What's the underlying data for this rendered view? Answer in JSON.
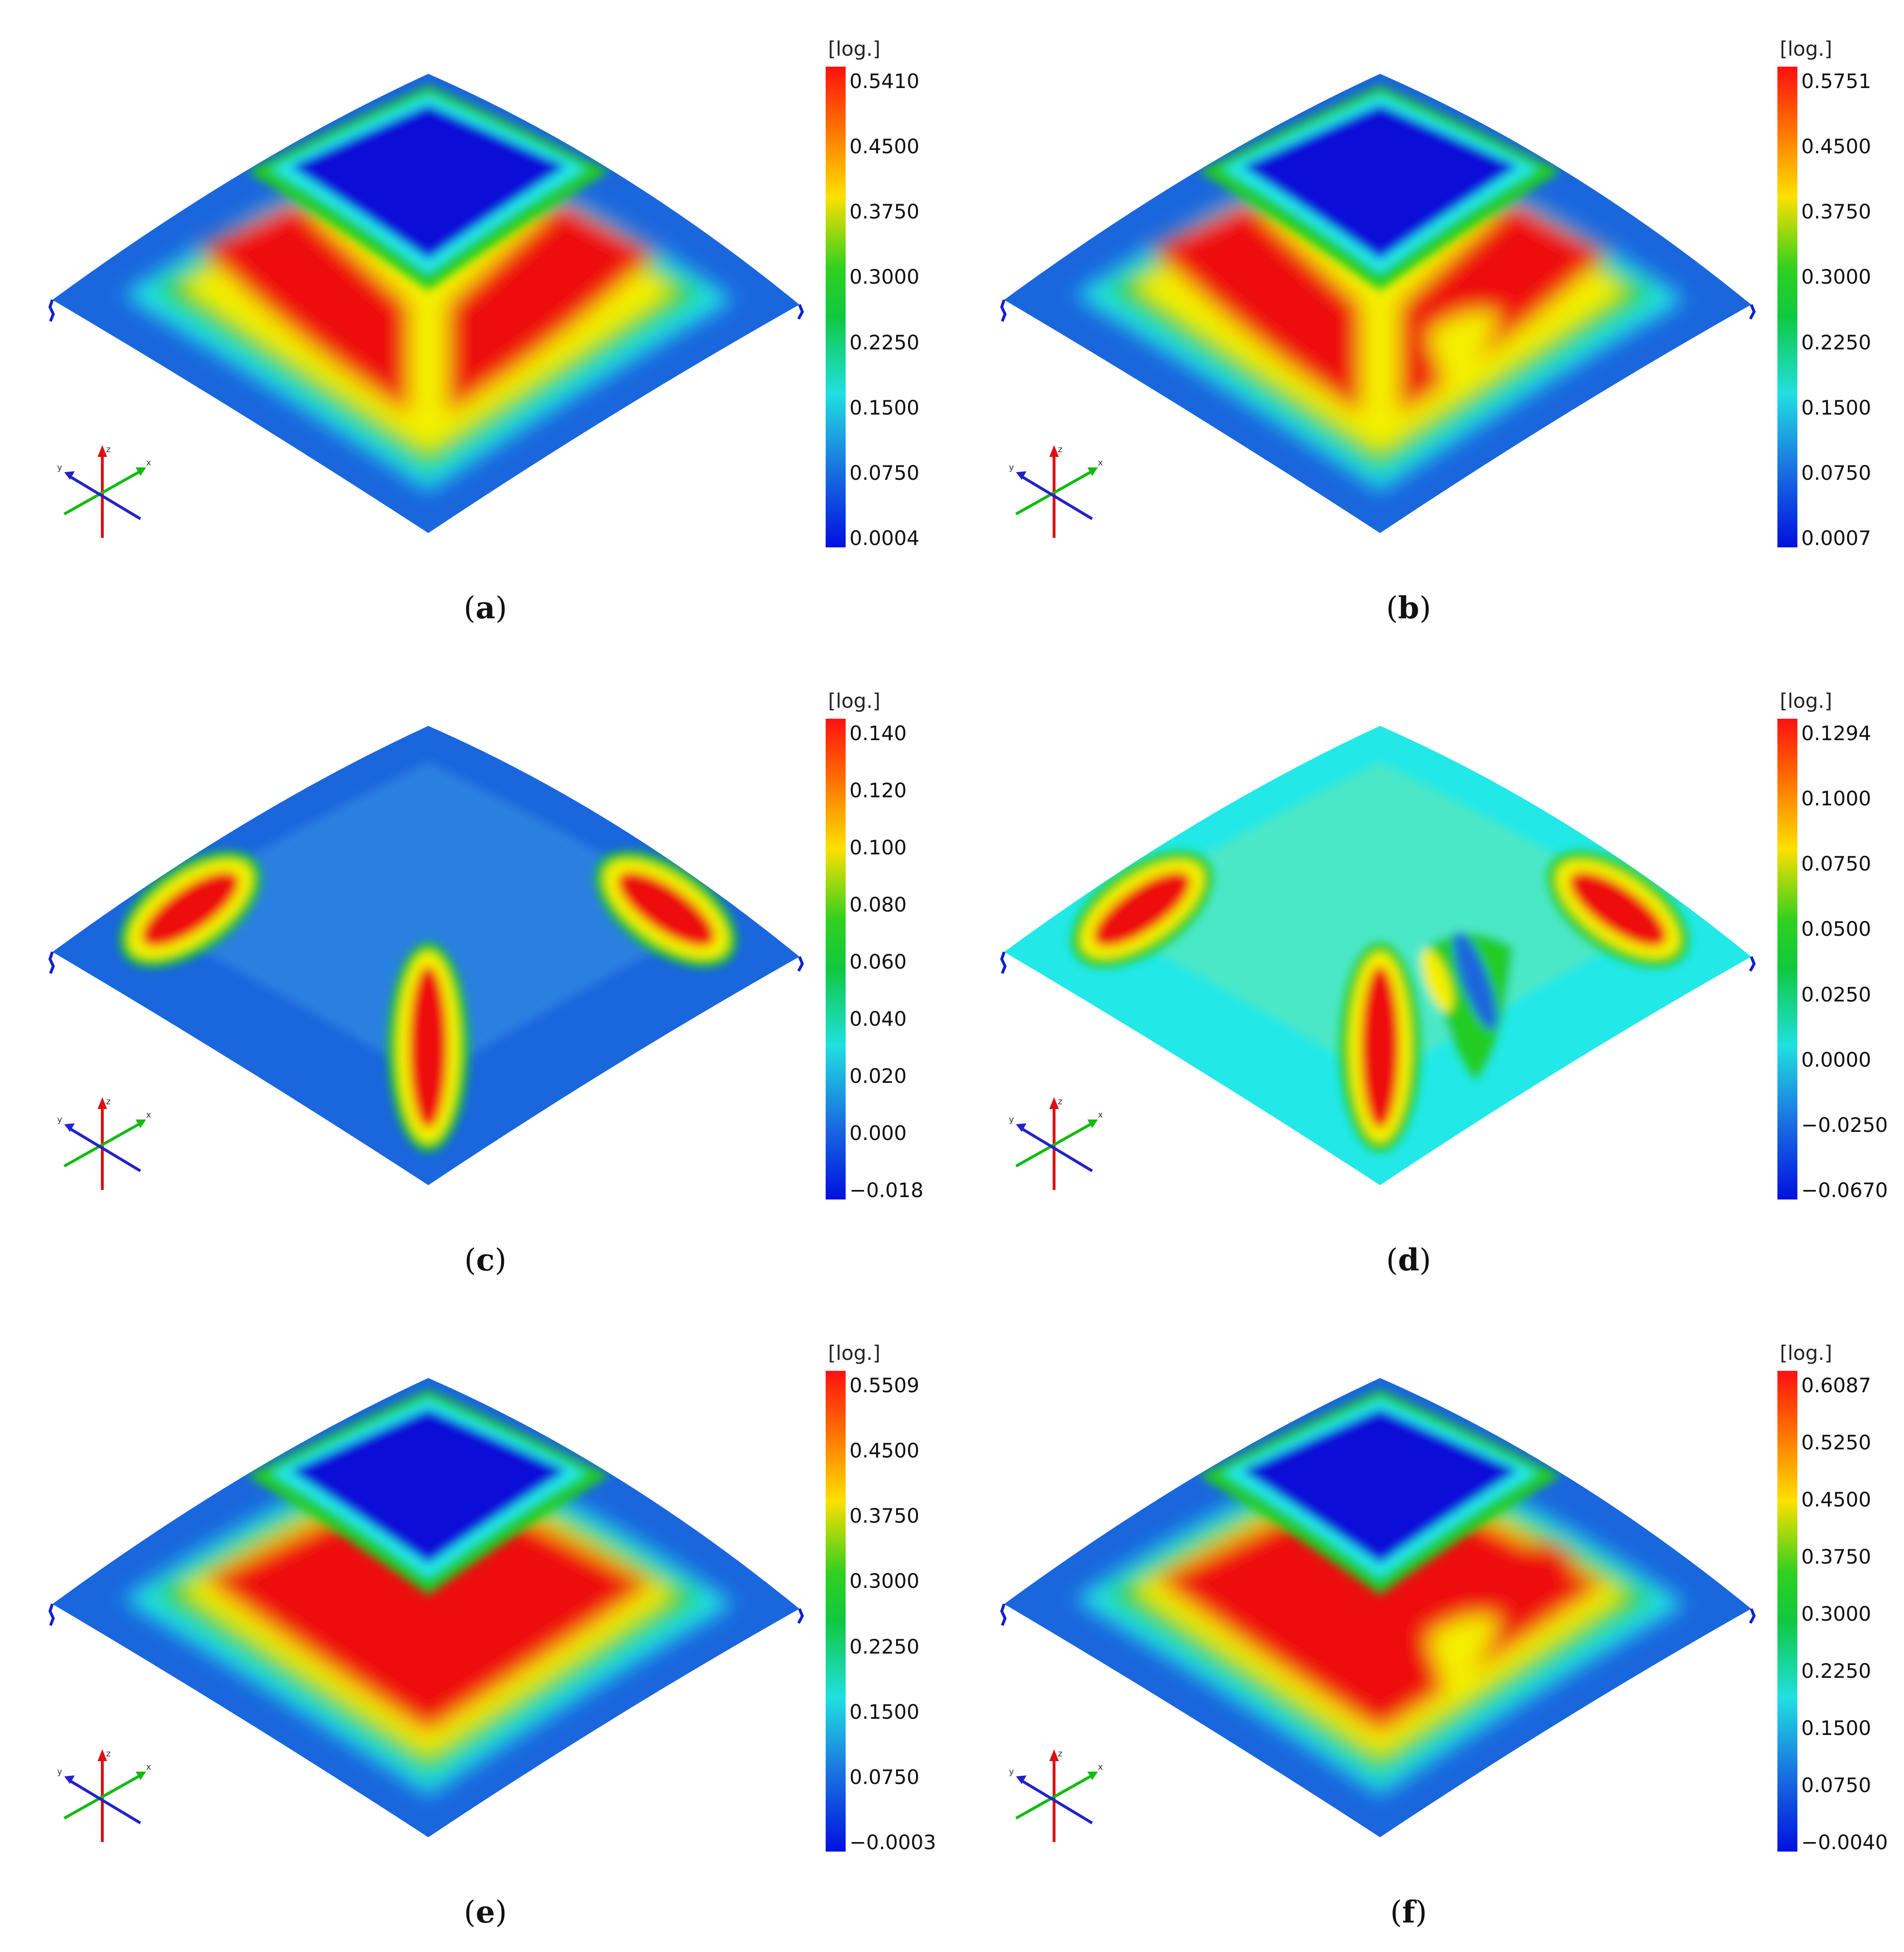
{
  "unit": "[log.]",
  "panels": [
    {
      "id": "a",
      "caption_letter": "a",
      "pattern": "square",
      "scale": [
        "0.5410",
        "0.4500",
        "0.3750",
        "0.3000",
        "0.2250",
        "0.1500",
        "0.0750",
        "0.0004"
      ]
    },
    {
      "id": "b",
      "caption_letter": "b",
      "pattern": "square-wrinkle",
      "scale": [
        "0.5751",
        "0.4500",
        "0.3750",
        "0.3000",
        "0.2250",
        "0.1500",
        "0.0750",
        "0.0007"
      ]
    },
    {
      "id": "c",
      "caption_letter": "c",
      "pattern": "ellipses",
      "scale": [
        "0.140",
        "0.120",
        "0.100",
        "0.080",
        "0.060",
        "0.040",
        "0.020",
        "0.000",
        "−0.018"
      ]
    },
    {
      "id": "d",
      "caption_letter": "d",
      "pattern": "ellipses-wrinkle",
      "scale": [
        "0.1294",
        "0.1000",
        "0.0750",
        "0.0500",
        "0.0250",
        "0.0000",
        "−0.0250",
        "−0.0670"
      ]
    },
    {
      "id": "e",
      "caption_letter": "e",
      "pattern": "square-wide",
      "scale": [
        "0.5509",
        "0.4500",
        "0.3750",
        "0.3000",
        "0.2250",
        "0.1500",
        "0.0750",
        "−0.0003"
      ]
    },
    {
      "id": "f",
      "caption_letter": "f",
      "pattern": "square-wrinkle-wide",
      "scale": [
        "0.6087",
        "0.5250",
        "0.4500",
        "0.3750",
        "0.3000",
        "0.2250",
        "0.1500",
        "0.0750",
        "−0.0040"
      ]
    }
  ],
  "axis_labels": {
    "x": "x",
    "y": "y",
    "z": "z"
  },
  "colors": {
    "red": "#ee1111",
    "orange": "#ff8800",
    "yellow": "#f4f000",
    "green": "#22cc22",
    "cyan": "#22e8e8",
    "blue": "#1a66dd",
    "darkblue": "#0a10d8"
  }
}
